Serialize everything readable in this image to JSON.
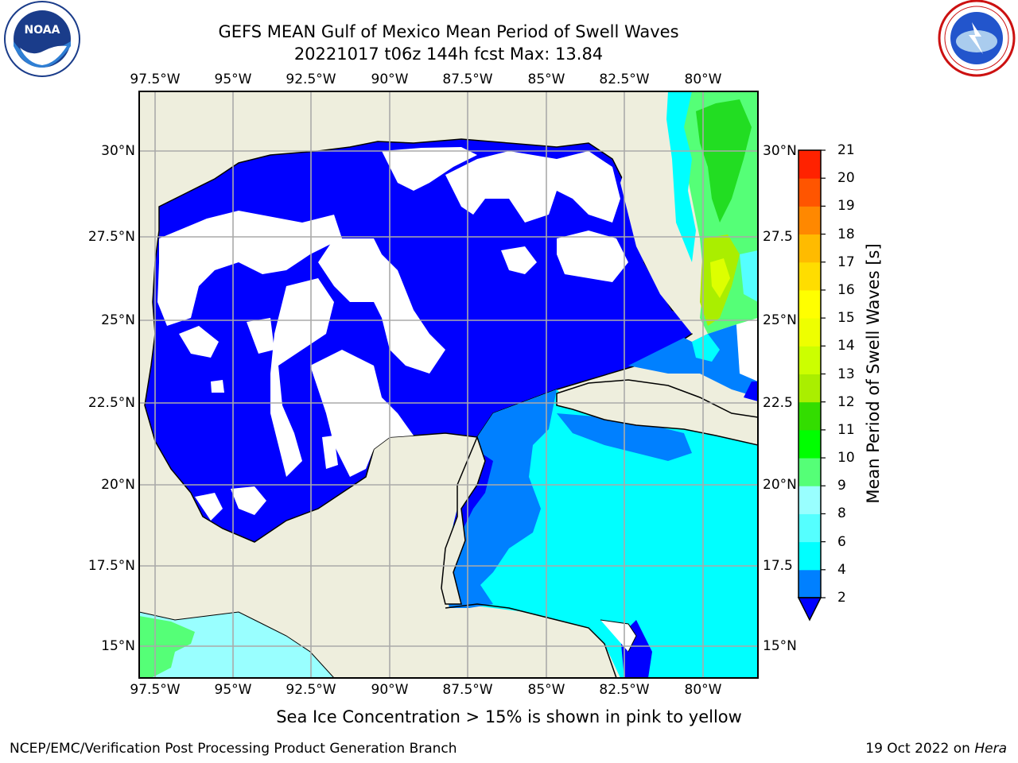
{
  "header": {
    "title_line1": "GEFS MEAN Gulf of Mexico Mean Period of Swell Waves",
    "title_line2": "20221017 t06z 144h fcst   Max: 13.84"
  },
  "map": {
    "lon_ticks": [
      "97.5°W",
      "95°W",
      "92.5°W",
      "90°W",
      "87.5°W",
      "85°W",
      "82.5°W",
      "80°W"
    ],
    "lat_ticks_left": [
      "30°N",
      "27.5°N",
      "25°N",
      "22.5°N",
      "20°N",
      "17.5°N",
      "15°N"
    ],
    "lat_ticks_right": [
      "30°N",
      "27.5",
      "25°N",
      "22.5",
      "20°N",
      "17.5",
      "15°N"
    ],
    "colors": {
      "land": "#eeeedd",
      "ocean_low": "#0000ff",
      "period_2_4": "#0080ff",
      "period_4_6": "#00ffff",
      "period_6_8": "#55ffff",
      "period_8_9": "#99ffff",
      "period_9_10": "#55ff77",
      "period_10_11": "#22dd22",
      "period_12_13": "#aaee00",
      "period_13_14": "#ddff00"
    }
  },
  "colorbar": {
    "label": "Mean Period of Swell Waves [s]",
    "ticks": [
      "2",
      "4",
      "6",
      "8",
      "9",
      "10",
      "11",
      "12",
      "13",
      "14",
      "15",
      "16",
      "17",
      "18",
      "19",
      "20",
      "21"
    ],
    "colors": [
      "#0080ff",
      "#00ffff",
      "#55ffff",
      "#99ffff",
      "#55ff77",
      "#00ff00",
      "#33dd00",
      "#aaee00",
      "#ccff00",
      "#eeff00",
      "#ffff00",
      "#ffdd00",
      "#ffbb00",
      "#ff8800",
      "#ff5500",
      "#ff2200"
    ]
  },
  "footer": {
    "note": "Sea Ice Concentration > 15% is shown in pink to yellow",
    "credit": "NCEP/EMC/Verification Post Processing Product Generation Branch",
    "date_prefix": "19 Oct 2022 on ",
    "machine": "Hera"
  },
  "logos": {
    "left": "NOAA",
    "right": "NATIONAL WEATHER SERVICE"
  }
}
